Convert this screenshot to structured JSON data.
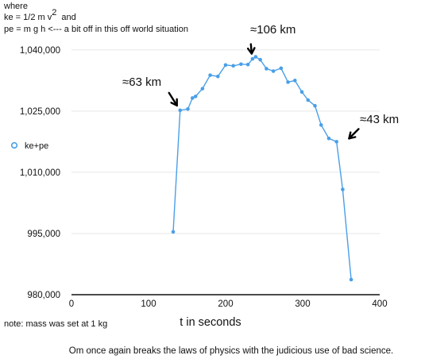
{
  "header": {
    "line1": "where",
    "line2_text": "ke = 1/2 m v",
    "line2_sup": "2",
    "line2_tail": "and",
    "line3": "pe = m g h  <--- a bit off in this off world situation"
  },
  "note": "note: mass was set at 1 kg",
  "caption": "Om once again breaks the laws of physics with the judicious use of bad science.",
  "colors": {
    "series": "#4a9fe8",
    "grid": "#e6e6e6",
    "axis": "#111111",
    "text": "#111111"
  },
  "chart_data": {
    "type": "scatter",
    "xlabel": "t in seconds",
    "ylabel": "",
    "xlim": [
      0,
      400
    ],
    "ylim": [
      980000,
      1046000
    ],
    "xticks": [
      0,
      100,
      200,
      300,
      400
    ],
    "yticks": [
      980000,
      995000,
      1010000,
      1025000,
      1040000
    ],
    "ytick_labels": [
      "980,000",
      "995,000",
      "1,010,000",
      "1,025,000",
      "1,040,000"
    ],
    "grid": "horizontal",
    "legend_position": "left",
    "series": [
      {
        "name": "ke+pe",
        "color": "#4a9fe8",
        "lines": true,
        "x": [
          132,
          141,
          151,
          157,
          161,
          170,
          180,
          190,
          200,
          210,
          220,
          229,
          235,
          239,
          245,
          253,
          262,
          272,
          281,
          290,
          299,
          307,
          316,
          324,
          334,
          344,
          352,
          363
        ],
        "y": [
          995400,
          1025200,
          1025500,
          1028200,
          1028600,
          1030500,
          1033800,
          1033500,
          1036300,
          1036100,
          1036500,
          1036400,
          1037800,
          1038300,
          1037600,
          1035400,
          1034800,
          1035500,
          1032100,
          1032500,
          1029700,
          1027700,
          1026300,
          1021600,
          1018300,
          1017500,
          1005800,
          983700
        ]
      }
    ],
    "annotations": [
      {
        "text": "≈63 km",
        "x": 141,
        "y": 1025200
      },
      {
        "text": "≈106 km",
        "x": 239,
        "y": 1038300
      },
      {
        "text": "≈43 km",
        "x": 352,
        "y": 1017500
      }
    ]
  }
}
